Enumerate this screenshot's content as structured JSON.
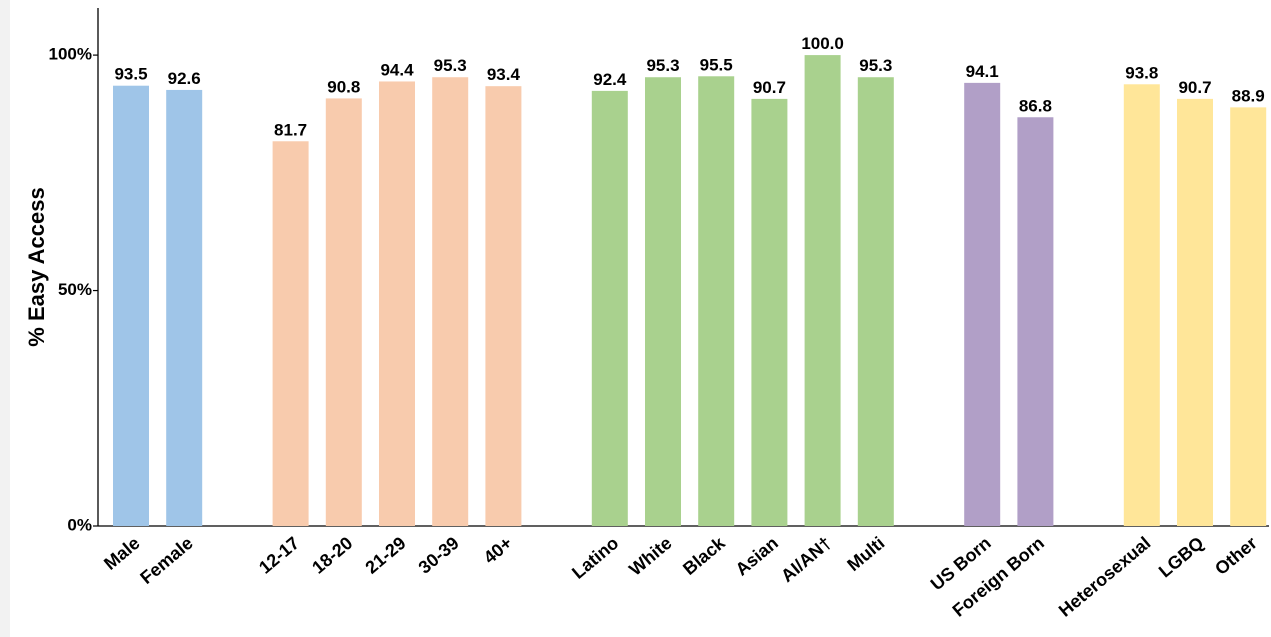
{
  "chart_data": {
    "type": "bar",
    "ylabel": "% Easy Access",
    "xlabel": "",
    "ylim": [
      0,
      110
    ],
    "yticks": [
      0,
      50,
      100
    ],
    "ytick_labels": [
      "0%",
      "50%",
      "100%"
    ],
    "grid": false,
    "legend": "none",
    "groups": [
      {
        "color": "#9fc5e8",
        "categories": [
          "Male",
          "Female"
        ],
        "values": [
          93.5,
          92.6
        ],
        "labels": [
          "93.5",
          "92.6"
        ]
      },
      {
        "color": "#f8cbad",
        "categories": [
          "12-17",
          "18-20",
          "21-29",
          "30-39",
          "40+"
        ],
        "values": [
          81.7,
          90.8,
          94.4,
          95.3,
          93.4
        ],
        "labels": [
          "81.7",
          "90.8",
          "94.4",
          "95.3",
          "93.4"
        ]
      },
      {
        "color": "#a9d18e",
        "categories": [
          "Latino",
          "White",
          "Black",
          "Asian",
          "AI/AN†",
          "Multi"
        ],
        "values": [
          92.4,
          95.3,
          95.5,
          90.7,
          100.0,
          95.3
        ],
        "labels": [
          "92.4",
          "95.3",
          "95.5",
          "90.7",
          "100.0",
          "95.3"
        ]
      },
      {
        "color": "#b19fc7",
        "categories": [
          "US Born",
          "Foreign Born"
        ],
        "values": [
          94.1,
          86.8
        ],
        "labels": [
          "94.1",
          "86.8"
        ]
      },
      {
        "color": "#ffe699",
        "categories": [
          "Heterosexual",
          "LGBQ",
          "Other"
        ],
        "values": [
          93.8,
          90.7,
          88.9
        ],
        "labels": [
          "93.8",
          "90.7",
          "88.9"
        ]
      }
    ]
  }
}
